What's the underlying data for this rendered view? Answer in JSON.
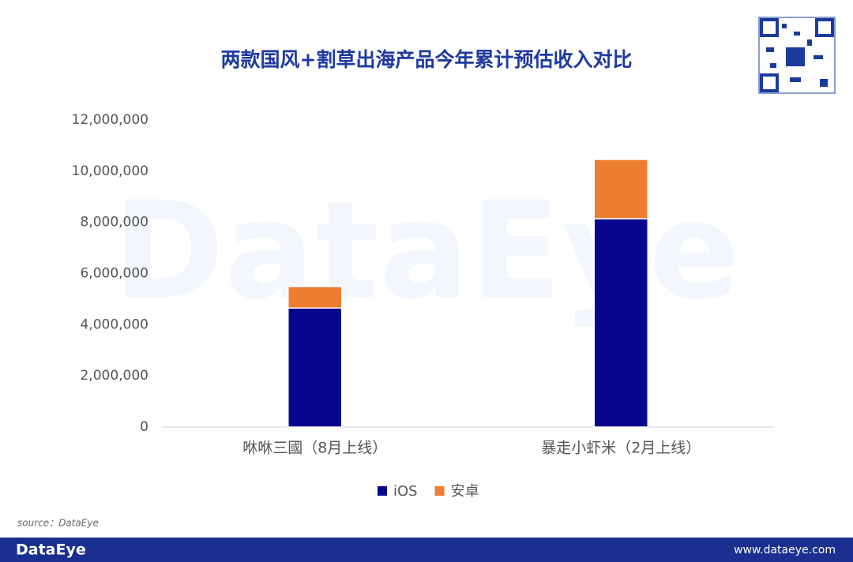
{
  "chart_data": {
    "type": "stacked-bar",
    "title": "两款国风+割草出海产品今年累计预估收入对比",
    "categories": [
      "咻咻三國（8月上线）",
      "暴走小虾米（2月上线）"
    ],
    "series": [
      {
        "name": "iOS",
        "color": "#06078c",
        "values": [
          4650000,
          8140000
        ]
      },
      {
        "name": "安卓",
        "color": "#ed7d31",
        "values": [
          840000,
          2320000
        ]
      }
    ],
    "ylim": [
      0,
      12000000
    ],
    "yticks": [
      0,
      {
        "value": 2000000,
        "label": "2,000,000"
      },
      {
        "value": 4000000,
        "label": "4,000,000"
      },
      {
        "value": 6000000,
        "label": "6,000,000"
      },
      {
        "value": 8000000,
        "label": "8,000,000"
      },
      {
        "value": 10000000,
        "label": "10,000,000"
      },
      {
        "value": 12000000,
        "label": "12,000,000"
      }
    ],
    "grid": false,
    "legend": "bottom",
    "source": "source：DataEye",
    "watermark": "DataEye",
    "footer": {
      "brand": "DataEye",
      "url": "www.dataeye.com"
    }
  }
}
